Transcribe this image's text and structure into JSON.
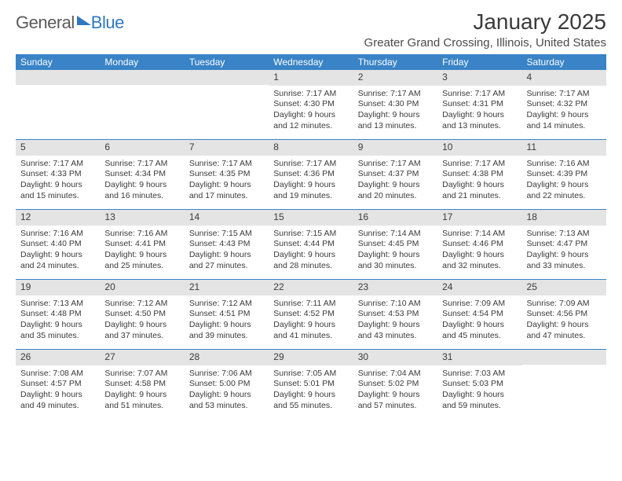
{
  "logo": {
    "word1": "General",
    "word2": "Blue"
  },
  "title": "January 2025",
  "location": "Greater Grand Crossing, Illinois, United States",
  "header_bg": "#3983c6",
  "daynum_bg": "#e4e4e4",
  "day_headers": [
    "Sunday",
    "Monday",
    "Tuesday",
    "Wednesday",
    "Thursday",
    "Friday",
    "Saturday"
  ],
  "weeks": [
    [
      {
        "n": "",
        "sunrise": "",
        "sunset": "",
        "d1": "",
        "d2": ""
      },
      {
        "n": "",
        "sunrise": "",
        "sunset": "",
        "d1": "",
        "d2": ""
      },
      {
        "n": "",
        "sunrise": "",
        "sunset": "",
        "d1": "",
        "d2": ""
      },
      {
        "n": "1",
        "sunrise": "Sunrise: 7:17 AM",
        "sunset": "Sunset: 4:30 PM",
        "d1": "Daylight: 9 hours",
        "d2": "and 12 minutes."
      },
      {
        "n": "2",
        "sunrise": "Sunrise: 7:17 AM",
        "sunset": "Sunset: 4:30 PM",
        "d1": "Daylight: 9 hours",
        "d2": "and 13 minutes."
      },
      {
        "n": "3",
        "sunrise": "Sunrise: 7:17 AM",
        "sunset": "Sunset: 4:31 PM",
        "d1": "Daylight: 9 hours",
        "d2": "and 13 minutes."
      },
      {
        "n": "4",
        "sunrise": "Sunrise: 7:17 AM",
        "sunset": "Sunset: 4:32 PM",
        "d1": "Daylight: 9 hours",
        "d2": "and 14 minutes."
      }
    ],
    [
      {
        "n": "5",
        "sunrise": "Sunrise: 7:17 AM",
        "sunset": "Sunset: 4:33 PM",
        "d1": "Daylight: 9 hours",
        "d2": "and 15 minutes."
      },
      {
        "n": "6",
        "sunrise": "Sunrise: 7:17 AM",
        "sunset": "Sunset: 4:34 PM",
        "d1": "Daylight: 9 hours",
        "d2": "and 16 minutes."
      },
      {
        "n": "7",
        "sunrise": "Sunrise: 7:17 AM",
        "sunset": "Sunset: 4:35 PM",
        "d1": "Daylight: 9 hours",
        "d2": "and 17 minutes."
      },
      {
        "n": "8",
        "sunrise": "Sunrise: 7:17 AM",
        "sunset": "Sunset: 4:36 PM",
        "d1": "Daylight: 9 hours",
        "d2": "and 19 minutes."
      },
      {
        "n": "9",
        "sunrise": "Sunrise: 7:17 AM",
        "sunset": "Sunset: 4:37 PM",
        "d1": "Daylight: 9 hours",
        "d2": "and 20 minutes."
      },
      {
        "n": "10",
        "sunrise": "Sunrise: 7:17 AM",
        "sunset": "Sunset: 4:38 PM",
        "d1": "Daylight: 9 hours",
        "d2": "and 21 minutes."
      },
      {
        "n": "11",
        "sunrise": "Sunrise: 7:16 AM",
        "sunset": "Sunset: 4:39 PM",
        "d1": "Daylight: 9 hours",
        "d2": "and 22 minutes."
      }
    ],
    [
      {
        "n": "12",
        "sunrise": "Sunrise: 7:16 AM",
        "sunset": "Sunset: 4:40 PM",
        "d1": "Daylight: 9 hours",
        "d2": "and 24 minutes."
      },
      {
        "n": "13",
        "sunrise": "Sunrise: 7:16 AM",
        "sunset": "Sunset: 4:41 PM",
        "d1": "Daylight: 9 hours",
        "d2": "and 25 minutes."
      },
      {
        "n": "14",
        "sunrise": "Sunrise: 7:15 AM",
        "sunset": "Sunset: 4:43 PM",
        "d1": "Daylight: 9 hours",
        "d2": "and 27 minutes."
      },
      {
        "n": "15",
        "sunrise": "Sunrise: 7:15 AM",
        "sunset": "Sunset: 4:44 PM",
        "d1": "Daylight: 9 hours",
        "d2": "and 28 minutes."
      },
      {
        "n": "16",
        "sunrise": "Sunrise: 7:14 AM",
        "sunset": "Sunset: 4:45 PM",
        "d1": "Daylight: 9 hours",
        "d2": "and 30 minutes."
      },
      {
        "n": "17",
        "sunrise": "Sunrise: 7:14 AM",
        "sunset": "Sunset: 4:46 PM",
        "d1": "Daylight: 9 hours",
        "d2": "and 32 minutes."
      },
      {
        "n": "18",
        "sunrise": "Sunrise: 7:13 AM",
        "sunset": "Sunset: 4:47 PM",
        "d1": "Daylight: 9 hours",
        "d2": "and 33 minutes."
      }
    ],
    [
      {
        "n": "19",
        "sunrise": "Sunrise: 7:13 AM",
        "sunset": "Sunset: 4:48 PM",
        "d1": "Daylight: 9 hours",
        "d2": "and 35 minutes."
      },
      {
        "n": "20",
        "sunrise": "Sunrise: 7:12 AM",
        "sunset": "Sunset: 4:50 PM",
        "d1": "Daylight: 9 hours",
        "d2": "and 37 minutes."
      },
      {
        "n": "21",
        "sunrise": "Sunrise: 7:12 AM",
        "sunset": "Sunset: 4:51 PM",
        "d1": "Daylight: 9 hours",
        "d2": "and 39 minutes."
      },
      {
        "n": "22",
        "sunrise": "Sunrise: 7:11 AM",
        "sunset": "Sunset: 4:52 PM",
        "d1": "Daylight: 9 hours",
        "d2": "and 41 minutes."
      },
      {
        "n": "23",
        "sunrise": "Sunrise: 7:10 AM",
        "sunset": "Sunset: 4:53 PM",
        "d1": "Daylight: 9 hours",
        "d2": "and 43 minutes."
      },
      {
        "n": "24",
        "sunrise": "Sunrise: 7:09 AM",
        "sunset": "Sunset: 4:54 PM",
        "d1": "Daylight: 9 hours",
        "d2": "and 45 minutes."
      },
      {
        "n": "25",
        "sunrise": "Sunrise: 7:09 AM",
        "sunset": "Sunset: 4:56 PM",
        "d1": "Daylight: 9 hours",
        "d2": "and 47 minutes."
      }
    ],
    [
      {
        "n": "26",
        "sunrise": "Sunrise: 7:08 AM",
        "sunset": "Sunset: 4:57 PM",
        "d1": "Daylight: 9 hours",
        "d2": "and 49 minutes."
      },
      {
        "n": "27",
        "sunrise": "Sunrise: 7:07 AM",
        "sunset": "Sunset: 4:58 PM",
        "d1": "Daylight: 9 hours",
        "d2": "and 51 minutes."
      },
      {
        "n": "28",
        "sunrise": "Sunrise: 7:06 AM",
        "sunset": "Sunset: 5:00 PM",
        "d1": "Daylight: 9 hours",
        "d2": "and 53 minutes."
      },
      {
        "n": "29",
        "sunrise": "Sunrise: 7:05 AM",
        "sunset": "Sunset: 5:01 PM",
        "d1": "Daylight: 9 hours",
        "d2": "and 55 minutes."
      },
      {
        "n": "30",
        "sunrise": "Sunrise: 7:04 AM",
        "sunset": "Sunset: 5:02 PM",
        "d1": "Daylight: 9 hours",
        "d2": "and 57 minutes."
      },
      {
        "n": "31",
        "sunrise": "Sunrise: 7:03 AM",
        "sunset": "Sunset: 5:03 PM",
        "d1": "Daylight: 9 hours",
        "d2": "and 59 minutes."
      },
      {
        "n": "",
        "sunrise": "",
        "sunset": "",
        "d1": "",
        "d2": ""
      }
    ]
  ]
}
